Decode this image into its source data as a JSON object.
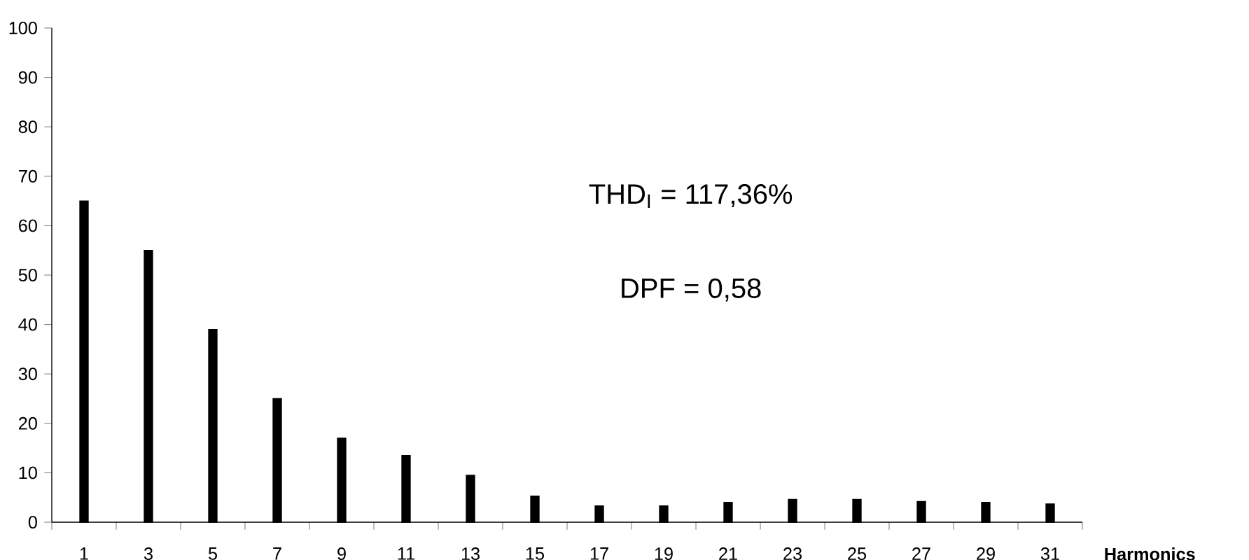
{
  "chart_data": {
    "type": "bar",
    "xlabel": "Harmonics",
    "categories": [
      "1",
      "3",
      "5",
      "7",
      "9",
      "11",
      "13",
      "15",
      "17",
      "19",
      "21",
      "23",
      "25",
      "27",
      "29",
      "31"
    ],
    "values": [
      65,
      55,
      39,
      25,
      17,
      13.5,
      9.5,
      5.3,
      3.3,
      3.3,
      4.0,
      4.6,
      4.6,
      4.2,
      4.0,
      3.7
    ],
    "color": "#000000",
    "ylim": [
      0,
      100
    ],
    "yticks": [
      0,
      10,
      20,
      30,
      40,
      50,
      60,
      70,
      80,
      90,
      100
    ],
    "grid": false,
    "annotations": [
      "THD$_{I}$ = 117,36%",
      "DPF = 0,58"
    ]
  }
}
